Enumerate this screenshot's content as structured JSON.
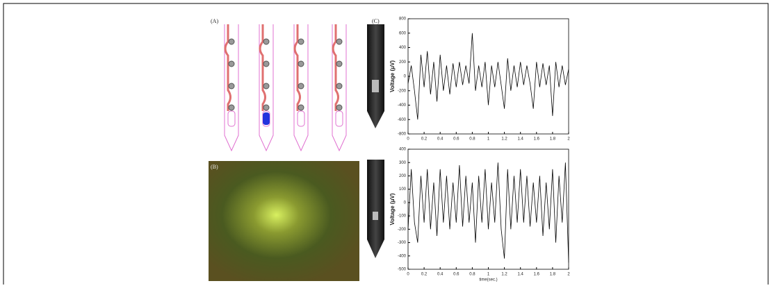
{
  "panel_labels": [
    "(A)",
    "(B)",
    "(C)"
  ],
  "chart_data": [
    {
      "type": "line",
      "y_label": "Voltage (μV)",
      "color": "#000000",
      "x": [
        0,
        0.04,
        0.08,
        0.12,
        0.16,
        0.2,
        0.24,
        0.28,
        0.32,
        0.36,
        0.4,
        0.44,
        0.48,
        0.52,
        0.56,
        0.6,
        0.64,
        0.68,
        0.72,
        0.76,
        0.8,
        0.84,
        0.88,
        0.92,
        0.96,
        1.0,
        1.04,
        1.08,
        1.12,
        1.16,
        1.2,
        1.24,
        1.28,
        1.32,
        1.36,
        1.4,
        1.44,
        1.48,
        1.52,
        1.56,
        1.6,
        1.64,
        1.68,
        1.72,
        1.76,
        1.8,
        1.84,
        1.88,
        1.92,
        1.96,
        2.0
      ],
      "series": [
        {
          "values": [
            -100,
            150,
            -200,
            -600,
            300,
            -150,
            350,
            -250,
            200,
            -350,
            300,
            -200,
            150,
            -250,
            180,
            -150,
            200,
            -120,
            150,
            -100,
            600,
            -200,
            150,
            -150,
            200,
            -400,
            150,
            -150,
            200,
            -120,
            -450,
            250,
            -200,
            150,
            -150,
            200,
            -120,
            150,
            -100,
            -450,
            200,
            -150,
            180,
            -120,
            150,
            -550,
            200,
            -150,
            150,
            -120,
            100
          ]
        }
      ],
      "xlim": [
        0,
        2
      ],
      "xticks": [
        0,
        0.2,
        0.4,
        0.6,
        0.8,
        1,
        1.2,
        1.4,
        1.6,
        1.8,
        2
      ],
      "ylim": [
        -800,
        800
      ],
      "yticks": [
        -800,
        -600,
        -400,
        -200,
        0,
        200,
        400,
        600,
        800
      ]
    },
    {
      "type": "line",
      "y_label": "Voltage (μV)",
      "x_label": "time(sec.)",
      "color": "#000000",
      "x": [
        0,
        0.04,
        0.08,
        0.12,
        0.16,
        0.2,
        0.24,
        0.28,
        0.32,
        0.36,
        0.4,
        0.44,
        0.48,
        0.52,
        0.56,
        0.6,
        0.64,
        0.68,
        0.72,
        0.76,
        0.8,
        0.84,
        0.88,
        0.92,
        0.96,
        1.0,
        1.04,
        1.08,
        1.12,
        1.16,
        1.2,
        1.24,
        1.28,
        1.32,
        1.36,
        1.4,
        1.44,
        1.48,
        1.52,
        1.56,
        1.6,
        1.64,
        1.68,
        1.72,
        1.76,
        1.8,
        1.84,
        1.88,
        1.92,
        1.96,
        2.0
      ],
      "series": [
        {
          "values": [
            -200,
            250,
            -150,
            -300,
            200,
            -150,
            250,
            -200,
            150,
            -250,
            250,
            -150,
            200,
            -200,
            150,
            -150,
            280,
            -180,
            200,
            -150,
            150,
            -300,
            200,
            -150,
            250,
            -200,
            150,
            -150,
            300,
            -200,
            -420,
            250,
            -200,
            200,
            -150,
            250,
            -150,
            200,
            -180,
            150,
            -150,
            200,
            -250,
            150,
            -200,
            250,
            -300,
            200,
            -150,
            300,
            -450
          ]
        }
      ],
      "xlim": [
        0,
        2
      ],
      "xticks": [
        0,
        0.2,
        0.4,
        0.6,
        0.8,
        1,
        1.2,
        1.4,
        1.6,
        1.8,
        2
      ],
      "ylim": [
        -500,
        400
      ],
      "yticks": [
        -500,
        -400,
        -300,
        -200,
        -100,
        0,
        100,
        200,
        300,
        400
      ]
    }
  ]
}
